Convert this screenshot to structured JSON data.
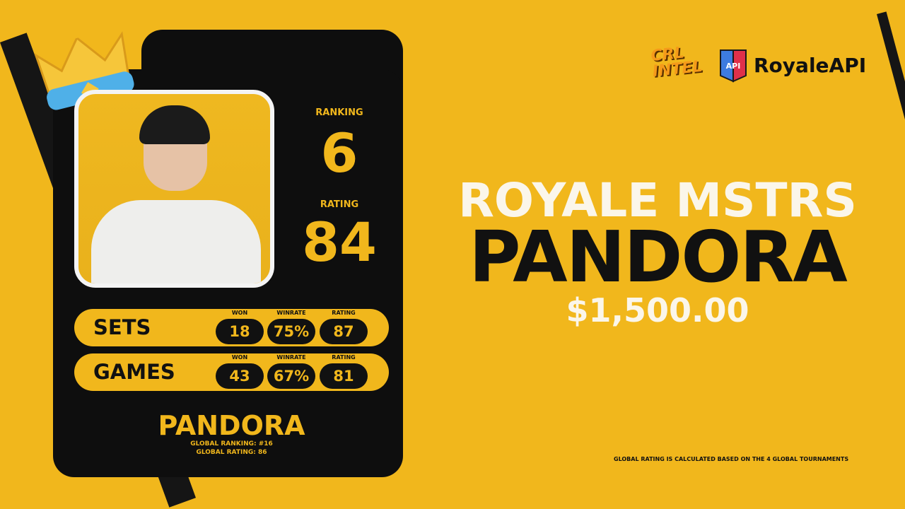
{
  "logos": {
    "crl": "CRL INTEL",
    "api_badge": "API",
    "royaleapi": "RoyaleAPI"
  },
  "card": {
    "ranking_label": "RANKING",
    "ranking": "6",
    "rating_label": "RATING",
    "rating": "84",
    "rows": [
      {
        "name": "SETS",
        "won_label": "WON",
        "winrate_label": "WINRATE",
        "rating_label": "RATING",
        "won": "18",
        "winrate": "75%",
        "rating": "87"
      },
      {
        "name": "GAMES",
        "won_label": "WON",
        "winrate_label": "WINRATE",
        "rating_label": "RATING",
        "won": "43",
        "winrate": "67%",
        "rating": "81"
      }
    ],
    "player": "PANDORA",
    "global_ranking": "GLOBAL RANKING: #16",
    "global_rating": "GLOBAL RATING: 86"
  },
  "headline": {
    "event": "ROYALE MSTRS",
    "player": "PANDORA",
    "prize": "$1,500.00"
  },
  "footnote": "GLOBAL RATING IS CALCULATED BASED ON THE 4 GLOBAL TOURNAMENTS",
  "colors": {
    "background": "#f1b71c",
    "card": "#0e0e0e",
    "accent": "#f1b71c"
  }
}
